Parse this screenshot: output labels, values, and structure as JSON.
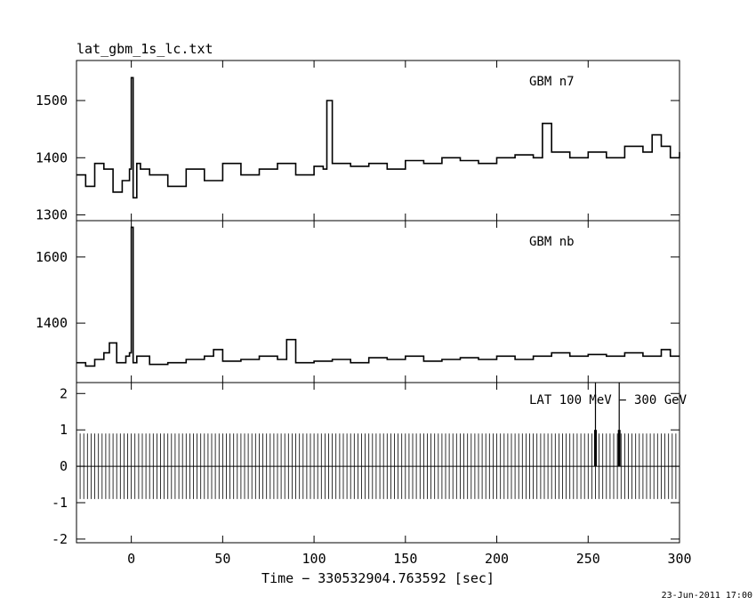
{
  "title": "lat_gbm_1s_lc.txt",
  "xlabel": "Time − 330532904.763592 [sec]",
  "timestamp": "23-Jun-2011 17:00",
  "chart_data": [
    {
      "type": "line",
      "panel_label": "GBM n7",
      "xlim": [
        -30,
        300
      ],
      "ylim": [
        1290,
        1570
      ],
      "yticks": [
        1300,
        1400,
        1500
      ],
      "series": [
        {
          "x": [
            -30,
            -25,
            -20,
            -15,
            -10,
            -5,
            -1,
            0,
            1,
            3,
            5,
            10,
            20,
            30,
            40,
            50,
            60,
            70,
            80,
            90,
            100,
            105,
            107,
            110,
            120,
            130,
            140,
            150,
            160,
            170,
            180,
            190,
            200,
            210,
            220,
            225,
            230,
            240,
            250,
            260,
            270,
            280,
            285,
            290,
            295,
            300
          ],
          "y": [
            1370,
            1350,
            1390,
            1380,
            1340,
            1360,
            1380,
            1540,
            1330,
            1390,
            1380,
            1370,
            1350,
            1380,
            1360,
            1390,
            1370,
            1380,
            1390,
            1370,
            1385,
            1380,
            1500,
            1390,
            1385,
            1390,
            1380,
            1395,
            1390,
            1400,
            1395,
            1390,
            1400,
            1405,
            1400,
            1460,
            1410,
            1400,
            1410,
            1400,
            1420,
            1410,
            1440,
            1420,
            1400,
            1410
          ]
        }
      ]
    },
    {
      "type": "line",
      "panel_label": "GBM nb",
      "xlim": [
        -30,
        300
      ],
      "ylim": [
        1220,
        1710
      ],
      "yticks": [
        1400,
        1600
      ],
      "series": [
        {
          "x": [
            -30,
            -25,
            -20,
            -15,
            -12,
            -8,
            -3,
            -1,
            0,
            1,
            3,
            10,
            20,
            30,
            40,
            45,
            50,
            60,
            70,
            80,
            85,
            90,
            100,
            110,
            120,
            130,
            140,
            150,
            160,
            170,
            180,
            190,
            200,
            210,
            220,
            230,
            240,
            250,
            260,
            270,
            280,
            290,
            295,
            300
          ],
          "y": [
            1280,
            1270,
            1290,
            1310,
            1340,
            1280,
            1300,
            1310,
            1690,
            1280,
            1300,
            1275,
            1280,
            1290,
            1300,
            1320,
            1285,
            1290,
            1300,
            1290,
            1350,
            1280,
            1285,
            1290,
            1280,
            1295,
            1290,
            1300,
            1285,
            1290,
            1295,
            1290,
            1300,
            1290,
            1300,
            1310,
            1300,
            1305,
            1300,
            1310,
            1300,
            1320,
            1300,
            1300
          ]
        }
      ]
    },
    {
      "type": "bar",
      "panel_label": "LAT 100 MeV − 300 GeV",
      "xlim": [
        -30,
        300
      ],
      "ylim": [
        -2.1,
        2.3
      ],
      "yticks": [
        -2,
        -1,
        0,
        1,
        2
      ],
      "bin_width_sec": 1,
      "rate_value": 0,
      "error_bar": [
        -0.9,
        0.9
      ],
      "detections": [
        {
          "x": 254,
          "value": 1,
          "error_bar": [
            0,
            2.3
          ]
        },
        {
          "x": 267,
          "value": 1,
          "error_bar": [
            0,
            2.3
          ]
        }
      ]
    }
  ],
  "x_ticks": [
    0,
    50,
    100,
    150,
    200,
    250,
    300
  ]
}
